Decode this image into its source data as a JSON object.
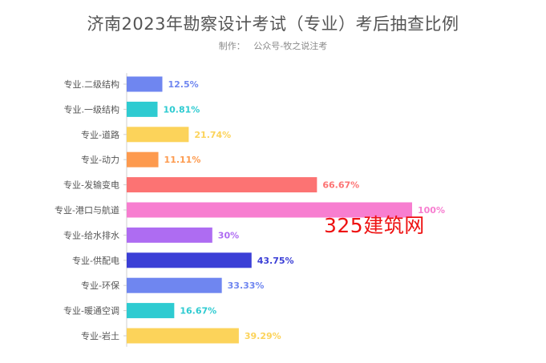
{
  "header": {
    "title": "济南2023年勘察设计考试（专业）考后抽查比例",
    "subtitle_label": "制作：",
    "subtitle_value": "公众号-牧之说注考"
  },
  "watermark": "325建筑网",
  "chart_data": {
    "type": "bar",
    "orientation": "horizontal",
    "categories": [
      "专业.二级结构",
      "专业.一级结构",
      "专业-道路",
      "专业-动力",
      "专业-发输变电",
      "专业-港口与航道",
      "专业-给水排水",
      "专业-供配电",
      "专业-环保",
      "专业-暖通空调",
      "专业-岩土"
    ],
    "values": [
      12.5,
      10.81,
      21.74,
      11.11,
      66.67,
      100,
      30,
      43.75,
      33.33,
      16.67,
      39.29
    ],
    "value_labels": [
      "12.5%",
      "10.81%",
      "21.74%",
      "11.11%",
      "66.67%",
      "100%",
      "30%",
      "43.75%",
      "33.33%",
      "16.67%",
      "39.29%"
    ],
    "colors": [
      "#6f86f0",
      "#2ecbd1",
      "#fcd35a",
      "#fd9a4e",
      "#fc7373",
      "#f77ed0",
      "#ae6cf2",
      "#3b3fd6",
      "#6f86f0",
      "#2ecbd1",
      "#fcd35a"
    ],
    "xlim": [
      0,
      100
    ],
    "grid": false,
    "legend": "none"
  }
}
